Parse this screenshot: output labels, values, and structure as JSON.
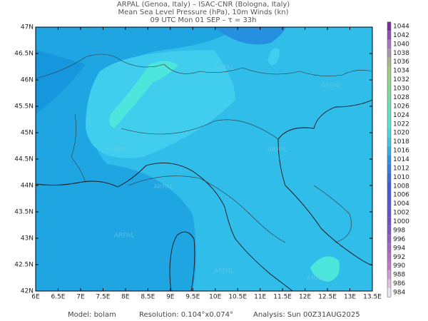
{
  "title": [
    "ARPAL (Genoa, Italy)  –  ISAC-CNR (Bologna, Italy)",
    "Mean Sea Level Pressure (hPa), 10m Winds (kn)",
    "09 UTC Mon 01 SEP  –  τ = 33h"
  ],
  "map": {
    "lon_ticks": [
      {
        "value": 6,
        "label": "6E"
      },
      {
        "value": 6.5,
        "label": "6.5E"
      },
      {
        "value": 7,
        "label": "7E"
      },
      {
        "value": 7.5,
        "label": "7.5E"
      },
      {
        "value": 8,
        "label": "8E"
      },
      {
        "value": 8.5,
        "label": "8.5E"
      },
      {
        "value": 9,
        "label": "9E"
      },
      {
        "value": 9.5,
        "label": "9.5E"
      },
      {
        "value": 10,
        "label": "10E"
      },
      {
        "value": 10.5,
        "label": "10.5E"
      },
      {
        "value": 11,
        "label": "11E"
      },
      {
        "value": 11.5,
        "label": "11.5E"
      },
      {
        "value": 12,
        "label": "12E"
      },
      {
        "value": 12.5,
        "label": "12.5E"
      },
      {
        "value": 13,
        "label": "13E"
      },
      {
        "value": 13.5,
        "label": "13.5E"
      }
    ],
    "lat_ticks": [
      {
        "value": 42,
        "label": "42N"
      },
      {
        "value": 42.5,
        "label": "42.5N"
      },
      {
        "value": 43,
        "label": "43N"
      },
      {
        "value": 43.5,
        "label": "43.5N"
      },
      {
        "value": 44,
        "label": "44N"
      },
      {
        "value": 44.5,
        "label": "44.5N"
      },
      {
        "value": 45,
        "label": "45N"
      },
      {
        "value": 45.5,
        "label": "45.5N"
      },
      {
        "value": 46,
        "label": "46N"
      },
      {
        "value": 46.5,
        "label": "46.5N"
      },
      {
        "value": 47,
        "label": "47N"
      }
    ],
    "watermark": "ARPAL"
  },
  "colorbar": {
    "levels": [
      984,
      986,
      988,
      990,
      992,
      994,
      996,
      998,
      1000,
      1002,
      1004,
      1006,
      1008,
      1010,
      1012,
      1014,
      1016,
      1018,
      1020,
      1022,
      1024,
      1026,
      1028,
      1030,
      1032,
      1034,
      1036,
      1038,
      1040,
      1042,
      1044
    ]
  },
  "footer": {
    "model": "Model: bolam",
    "resolution": "Resolution: 0.104°x0.074°",
    "analysis": "Analysis: Sun 00Z31AUG2025"
  }
}
